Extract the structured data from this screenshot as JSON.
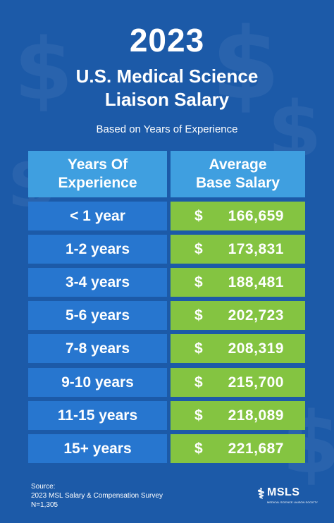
{
  "year": "2023",
  "title_lines": [
    "U.S. Medical Science",
    "Liaison Salary"
  ],
  "subtitle": "Based on Years of Experience",
  "colors": {
    "background": "#1c5aa8",
    "header": "#3f9fe0",
    "label_cell": "#2776cf",
    "value_cell": "#84c441"
  },
  "chart_data": {
    "type": "table",
    "columns": [
      "Years Of Experience",
      "Average Base Salary"
    ],
    "rows": [
      {
        "experience": "< 1 year",
        "salary": 166659
      },
      {
        "experience": "1-2 years",
        "salary": 173831
      },
      {
        "experience": "3-4 years",
        "salary": 188481
      },
      {
        "experience": "5-6 years",
        "salary": 202723
      },
      {
        "experience": "7-8 years",
        "salary": 208319
      },
      {
        "experience": "9-10 years",
        "salary": 215700
      },
      {
        "experience": "11-15 years",
        "salary": 218089
      },
      {
        "experience": "15+ years",
        "salary": 221687
      }
    ],
    "currency_symbol": "$"
  },
  "header": {
    "col1_lines": [
      "Years Of",
      "Experience"
    ],
    "col2_lines": [
      "Average",
      "Base Salary"
    ]
  },
  "source": {
    "label": "Source:",
    "line1": "2023 MSL Salary & Compensation Survey",
    "line2": "N=1,305"
  },
  "logo": {
    "text": "MSLS",
    "tagline": "MEDICAL SCIENCE LIAISON SOCIETY"
  }
}
